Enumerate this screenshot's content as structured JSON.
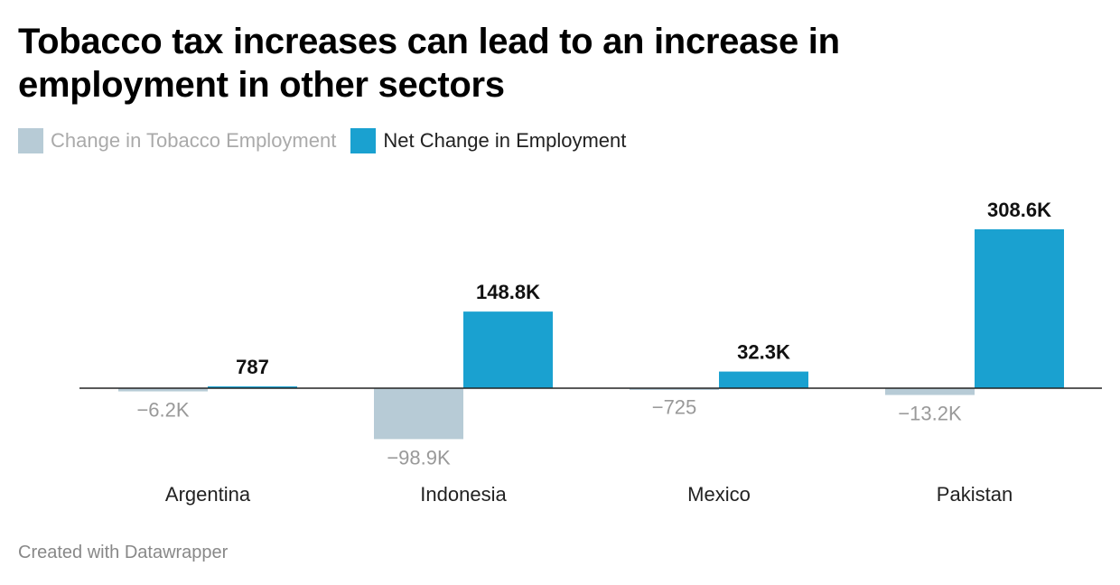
{
  "title": "Tobacco tax increases can lead to an increase in employment in other sectors",
  "legend": [
    {
      "label": "Change in Tobacco Employment",
      "color": "#b7cbd6",
      "text_color": "#aaaaaa"
    },
    {
      "label": "Net Change in Employment",
      "color": "#1aa1d0",
      "text_color": "#222222"
    }
  ],
  "footer": "Created with Datawrapper",
  "chart_data": {
    "type": "bar",
    "categories": [
      "Argentina",
      "Indonesia",
      "Mexico",
      "Pakistan"
    ],
    "series": [
      {
        "name": "Change in Tobacco Employment",
        "color": "#b7cbd6",
        "values": [
          -6200,
          -98900,
          -725,
          -13200
        ],
        "labels": [
          "−6.2K",
          "−98.9K",
          "−725",
          "−13.2K"
        ]
      },
      {
        "name": "Net Change in Employment",
        "color": "#1aa1d0",
        "values": [
          787,
          148800,
          32300,
          308600
        ],
        "labels": [
          "787",
          "148.8K",
          "32.3K",
          "308.6K"
        ]
      }
    ],
    "title": "Tobacco tax increases can lead to an increase in employment in other sectors",
    "xlabel": "",
    "ylabel": "",
    "grid": false,
    "legend_position": "top-left"
  }
}
